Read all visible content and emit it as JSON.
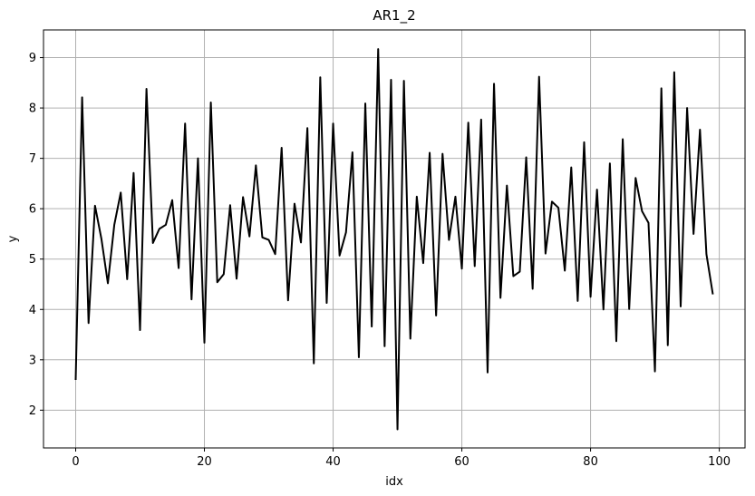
{
  "chart_data": {
    "type": "line",
    "title": "AR1_2",
    "xlabel": "idx",
    "ylabel": "y",
    "xlim": [
      -5,
      104
    ],
    "ylim": [
      1.25,
      9.55
    ],
    "xticks": [
      0,
      20,
      40,
      60,
      80,
      100
    ],
    "yticks": [
      2,
      3,
      4,
      5,
      6,
      7,
      8,
      9
    ],
    "grid": true,
    "line_color": "#000000",
    "grid_color": "#b0b0b0",
    "series": [
      {
        "x": [
          0,
          1,
          2,
          3,
          4,
          5,
          6,
          7,
          8,
          9,
          10,
          11,
          12,
          13,
          14,
          15,
          16,
          17,
          18,
          19,
          20,
          21,
          22,
          23,
          24,
          25,
          26,
          27,
          28,
          29,
          30,
          31,
          32,
          33,
          34,
          35,
          36,
          37,
          38,
          39,
          40,
          41,
          42,
          43,
          44,
          45,
          46,
          47,
          48,
          49,
          50,
          51,
          52,
          53,
          54,
          55,
          56,
          57,
          58,
          59,
          60,
          61,
          62,
          63,
          64,
          65,
          66,
          67,
          68,
          69,
          70,
          71,
          72,
          73,
          74,
          75,
          76,
          77,
          78,
          79,
          80,
          81,
          82,
          83,
          84,
          85,
          86,
          87,
          88,
          89,
          90,
          91,
          92,
          93,
          94,
          95,
          96,
          97,
          98,
          99
        ],
        "values": [
          2.6,
          8.21,
          3.73,
          6.06,
          5.4,
          4.52,
          5.68,
          6.32,
          4.6,
          6.71,
          3.59,
          8.38,
          5.32,
          5.6,
          5.68,
          6.17,
          4.82,
          7.69,
          4.2,
          7.0,
          3.34,
          8.11,
          4.54,
          4.7,
          6.07,
          4.61,
          6.23,
          5.45,
          6.86,
          5.43,
          5.38,
          5.1,
          7.21,
          4.18,
          6.1,
          5.33,
          7.6,
          2.93,
          8.61,
          4.13,
          7.69,
          5.07,
          5.53,
          7.12,
          3.05,
          8.09,
          3.66,
          9.17,
          3.27,
          8.56,
          1.62,
          8.54,
          3.42,
          6.24,
          4.92,
          7.11,
          3.88,
          7.09,
          5.38,
          6.24,
          4.81,
          7.71,
          4.86,
          7.77,
          2.75,
          8.48,
          4.23,
          6.46,
          4.66,
          4.75,
          7.02,
          4.41,
          8.62,
          5.11,
          6.14,
          6.02,
          4.77,
          6.82,
          4.17,
          7.32,
          4.25,
          6.38,
          4.0,
          6.9,
          3.37,
          7.38,
          4.01,
          6.61,
          5.95,
          5.72,
          2.77,
          8.39,
          3.29,
          8.71,
          4.06,
          8.0,
          5.5,
          7.57,
          5.1,
          4.3
        ]
      }
    ]
  }
}
